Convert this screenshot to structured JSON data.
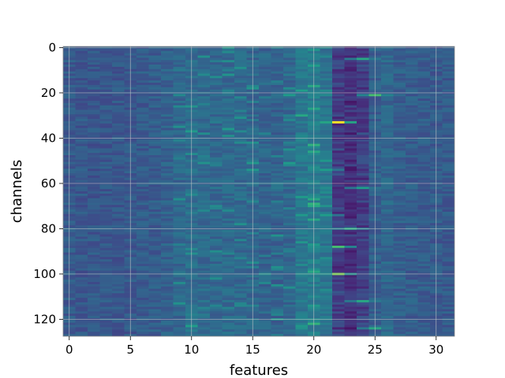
{
  "chart_data": {
    "type": "heatmap",
    "title": "",
    "xlabel": "features",
    "ylabel": "channels",
    "x_range": [
      -0.5,
      31.5
    ],
    "y_range": [
      -0.5,
      127.5
    ],
    "y_inverted": true,
    "x_ticks": [
      0,
      5,
      10,
      15,
      20,
      25,
      30
    ],
    "x_tick_labels": [
      "0",
      "5",
      "10",
      "15",
      "20",
      "25",
      "30"
    ],
    "y_ticks": [
      0,
      20,
      40,
      60,
      80,
      100,
      120
    ],
    "y_tick_labels": [
      "0",
      "20",
      "40",
      "60",
      "80",
      "100",
      "120"
    ],
    "grid": true,
    "colormap": "viridis",
    "rows": 128,
    "cols": 32,
    "column_profile": [
      0.28,
      0.27,
      0.27,
      0.27,
      0.27,
      0.27,
      0.28,
      0.29,
      0.31,
      0.33,
      0.35,
      0.34,
      0.33,
      0.34,
      0.34,
      0.33,
      0.32,
      0.31,
      0.33,
      0.4,
      0.42,
      0.38,
      0.22,
      0.18,
      0.22,
      0.3,
      0.33,
      0.3,
      0.29,
      0.29,
      0.28,
      0.28
    ],
    "hotspots": [
      {
        "channel": 33,
        "feature": 22,
        "value": 1.0
      },
      {
        "channel": 21,
        "feature": 25,
        "value": 0.7
      },
      {
        "channel": 100,
        "feature": 22,
        "value": 0.8
      },
      {
        "channel": 5,
        "feature": 24,
        "value": 0.6
      },
      {
        "channel": 17,
        "feature": 20,
        "value": 0.6
      },
      {
        "channel": 30,
        "feature": 19,
        "value": 0.6
      },
      {
        "channel": 46,
        "feature": 20,
        "value": 0.6
      },
      {
        "channel": 54,
        "feature": 21,
        "value": 0.55
      },
      {
        "channel": 66,
        "feature": 19,
        "value": 0.55
      },
      {
        "channel": 70,
        "feature": 20,
        "value": 0.6
      },
      {
        "channel": 74,
        "feature": 21,
        "value": 0.55
      },
      {
        "channel": 76,
        "feature": 20,
        "value": 0.6
      },
      {
        "channel": 80,
        "feature": 23,
        "value": 0.6
      },
      {
        "channel": 88,
        "feature": 22,
        "value": 0.7
      },
      {
        "channel": 99,
        "feature": 20,
        "value": 0.6
      },
      {
        "channel": 112,
        "feature": 24,
        "value": 0.6
      },
      {
        "channel": 122,
        "feature": 20,
        "value": 0.65
      },
      {
        "channel": 124,
        "feature": 25,
        "value": 0.6
      },
      {
        "channel": 62,
        "feature": 24,
        "value": 0.55
      },
      {
        "channel": 35,
        "feature": 9,
        "value": 0.5
      },
      {
        "channel": 91,
        "feature": 10,
        "value": 0.5
      }
    ]
  }
}
